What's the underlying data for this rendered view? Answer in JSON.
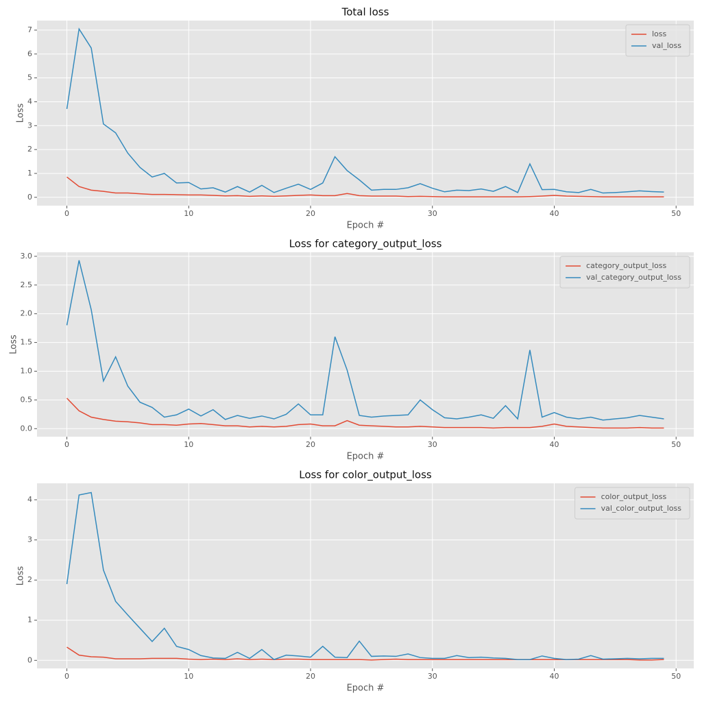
{
  "chart_data": [
    {
      "type": "line",
      "title": "Total loss",
      "xlabel": "Epoch #",
      "ylabel": "Loss",
      "x": [
        0,
        1,
        2,
        3,
        4,
        5,
        6,
        7,
        8,
        9,
        10,
        11,
        12,
        13,
        14,
        15,
        16,
        17,
        18,
        19,
        20,
        21,
        22,
        23,
        24,
        25,
        26,
        27,
        28,
        29,
        30,
        31,
        32,
        33,
        34,
        35,
        36,
        37,
        38,
        39,
        40,
        41,
        42,
        43,
        44,
        45,
        46,
        47,
        48,
        49
      ],
      "series": [
        {
          "name": "loss",
          "color": "#E24A33",
          "values": [
            0.85,
            0.45,
            0.3,
            0.25,
            0.18,
            0.18,
            0.15,
            0.12,
            0.12,
            0.11,
            0.1,
            0.1,
            0.08,
            0.06,
            0.07,
            0.04,
            0.06,
            0.04,
            0.06,
            0.08,
            0.1,
            0.07,
            0.07,
            0.16,
            0.07,
            0.05,
            0.05,
            0.05,
            0.03,
            0.04,
            0.03,
            0.02,
            0.02,
            0.02,
            0.02,
            0.02,
            0.02,
            0.02,
            0.03,
            0.05,
            0.08,
            0.05,
            0.04,
            0.03,
            0.02,
            0.02,
            0.02,
            0.02,
            0.02,
            0.02
          ]
        },
        {
          "name": "val_loss",
          "color": "#348ABD",
          "values": [
            3.7,
            7.05,
            6.25,
            3.07,
            2.7,
            1.85,
            1.25,
            0.85,
            1.0,
            0.6,
            0.62,
            0.35,
            0.4,
            0.22,
            0.45,
            0.22,
            0.5,
            0.2,
            0.38,
            0.55,
            0.33,
            0.6,
            1.7,
            1.12,
            0.73,
            0.3,
            0.33,
            0.33,
            0.4,
            0.57,
            0.38,
            0.23,
            0.3,
            0.28,
            0.35,
            0.25,
            0.45,
            0.2,
            1.4,
            0.32,
            0.33,
            0.23,
            0.2,
            0.33,
            0.18,
            0.2,
            0.23,
            0.27,
            0.24,
            0.22
          ]
        }
      ],
      "xlim": [
        -2.45,
        51.45
      ],
      "xticks": [
        0,
        10,
        20,
        30,
        40,
        50
      ],
      "ylim": [
        -0.35,
        7.4
      ],
      "yticks": [
        0,
        1,
        2,
        3,
        4,
        5,
        6,
        7
      ],
      "grid": true,
      "legend": "upper right"
    },
    {
      "type": "line",
      "title": "Loss for category_output_loss",
      "xlabel": "Epoch #",
      "ylabel": "Loss",
      "x": [
        0,
        1,
        2,
        3,
        4,
        5,
        6,
        7,
        8,
        9,
        10,
        11,
        12,
        13,
        14,
        15,
        16,
        17,
        18,
        19,
        20,
        21,
        22,
        23,
        24,
        25,
        26,
        27,
        28,
        29,
        30,
        31,
        32,
        33,
        34,
        35,
        36,
        37,
        38,
        39,
        40,
        41,
        42,
        43,
        44,
        45,
        46,
        47,
        48,
        49
      ],
      "series": [
        {
          "name": "category_output_loss",
          "color": "#E24A33",
          "values": [
            0.53,
            0.31,
            0.2,
            0.16,
            0.13,
            0.12,
            0.1,
            0.07,
            0.07,
            0.06,
            0.08,
            0.09,
            0.07,
            0.05,
            0.05,
            0.03,
            0.04,
            0.03,
            0.04,
            0.07,
            0.08,
            0.05,
            0.05,
            0.14,
            0.06,
            0.05,
            0.04,
            0.03,
            0.03,
            0.04,
            0.03,
            0.02,
            0.02,
            0.02,
            0.02,
            0.01,
            0.02,
            0.02,
            0.02,
            0.04,
            0.08,
            0.04,
            0.03,
            0.02,
            0.01,
            0.01,
            0.01,
            0.02,
            0.01,
            0.01
          ]
        },
        {
          "name": "val_category_output_loss",
          "color": "#348ABD",
          "values": [
            1.8,
            2.93,
            2.07,
            0.83,
            1.25,
            0.74,
            0.46,
            0.37,
            0.2,
            0.24,
            0.34,
            0.22,
            0.33,
            0.16,
            0.23,
            0.18,
            0.22,
            0.17,
            0.25,
            0.43,
            0.24,
            0.24,
            1.6,
            1.02,
            0.23,
            0.2,
            0.22,
            0.23,
            0.24,
            0.5,
            0.33,
            0.19,
            0.17,
            0.2,
            0.24,
            0.18,
            0.4,
            0.17,
            1.37,
            0.2,
            0.28,
            0.2,
            0.17,
            0.2,
            0.15,
            0.17,
            0.19,
            0.23,
            0.2,
            0.17
          ]
        }
      ],
      "xlim": [
        -2.45,
        51.45
      ],
      "xticks": [
        0,
        10,
        20,
        30,
        40,
        50
      ],
      "ylim": [
        -0.14,
        3.07
      ],
      "yticks": [
        {
          "value": 0,
          "label": "0.0"
        },
        0.5,
        {
          "value": 1,
          "label": "1.0"
        },
        1.5,
        {
          "value": 2,
          "label": "2.0"
        },
        2.5,
        {
          "value": 3,
          "label": "3.0"
        }
      ],
      "grid": true,
      "legend": "upper right"
    },
    {
      "type": "line",
      "title": "Loss for color_output_loss",
      "xlabel": "Epoch #",
      "ylabel": "Loss",
      "x": [
        0,
        1,
        2,
        3,
        4,
        5,
        6,
        7,
        8,
        9,
        10,
        11,
        12,
        13,
        14,
        15,
        16,
        17,
        18,
        19,
        20,
        21,
        22,
        23,
        24,
        25,
        26,
        27,
        28,
        29,
        30,
        31,
        32,
        33,
        34,
        35,
        36,
        37,
        38,
        39,
        40,
        41,
        42,
        43,
        44,
        45,
        46,
        47,
        48,
        49
      ],
      "series": [
        {
          "name": "color_output_loss",
          "color": "#E24A33",
          "values": [
            0.33,
            0.13,
            0.09,
            0.08,
            0.04,
            0.04,
            0.04,
            0.05,
            0.05,
            0.05,
            0.03,
            0.02,
            0.03,
            0.02,
            0.04,
            0.02,
            0.03,
            0.02,
            0.03,
            0.03,
            0.02,
            0.02,
            0.02,
            0.02,
            0.02,
            0.01,
            0.02,
            0.03,
            0.02,
            0.02,
            0.02,
            0.02,
            0.02,
            0.02,
            0.02,
            0.02,
            0.02,
            0.02,
            0.02,
            0.02,
            0.02,
            0.02,
            0.02,
            0.02,
            0.02,
            0.02,
            0.02,
            0.01,
            0.01,
            0.02
          ]
        },
        {
          "name": "val_color_output_loss",
          "color": "#348ABD",
          "values": [
            1.9,
            4.12,
            4.18,
            2.25,
            1.47,
            1.13,
            0.8,
            0.47,
            0.8,
            0.35,
            0.27,
            0.12,
            0.06,
            0.05,
            0.2,
            0.05,
            0.27,
            0.02,
            0.13,
            0.11,
            0.08,
            0.35,
            0.08,
            0.07,
            0.48,
            0.1,
            0.11,
            0.1,
            0.16,
            0.07,
            0.05,
            0.05,
            0.12,
            0.07,
            0.08,
            0.06,
            0.05,
            0.02,
            0.02,
            0.11,
            0.05,
            0.02,
            0.03,
            0.12,
            0.03,
            0.04,
            0.05,
            0.04,
            0.05,
            0.05
          ]
        }
      ],
      "xlim": [
        -2.45,
        51.45
      ],
      "xticks": [
        0,
        10,
        20,
        30,
        40,
        50
      ],
      "ylim": [
        -0.2,
        4.41
      ],
      "yticks": [
        0,
        1,
        2,
        3,
        4
      ],
      "grid": true,
      "legend": "upper right"
    }
  ]
}
